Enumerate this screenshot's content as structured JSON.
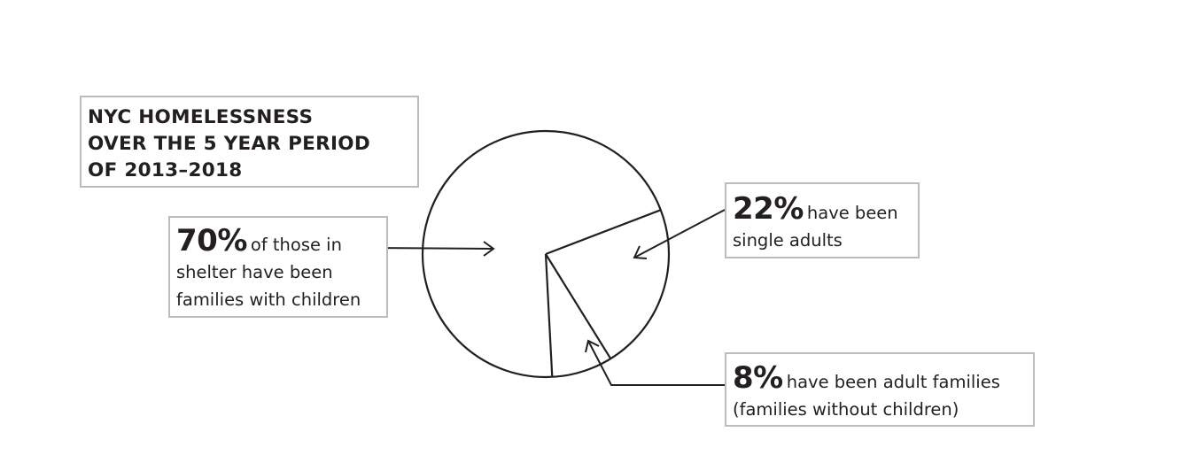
{
  "chart_data": {
    "type": "pie",
    "title_lines": [
      "NYC HOMELESSNESS",
      "OVER THE 5 YEAR PERIOD",
      "OF 2013–2018"
    ],
    "slices": [
      {
        "value": 70,
        "pct_label": "70%",
        "line1": "of those in",
        "line2": "shelter have been",
        "line3": "families with children"
      },
      {
        "value": 22,
        "pct_label": "22%",
        "line1": "have been",
        "line2": "single adults"
      },
      {
        "value": 8,
        "pct_label": "8%",
        "line1": "have been adult families",
        "line2": "(families without children)"
      }
    ],
    "legend": "none",
    "grid": false,
    "colors": {
      "stroke": "#231f20",
      "fill": "#ffffff",
      "box_border": "#bcbcbc"
    }
  }
}
